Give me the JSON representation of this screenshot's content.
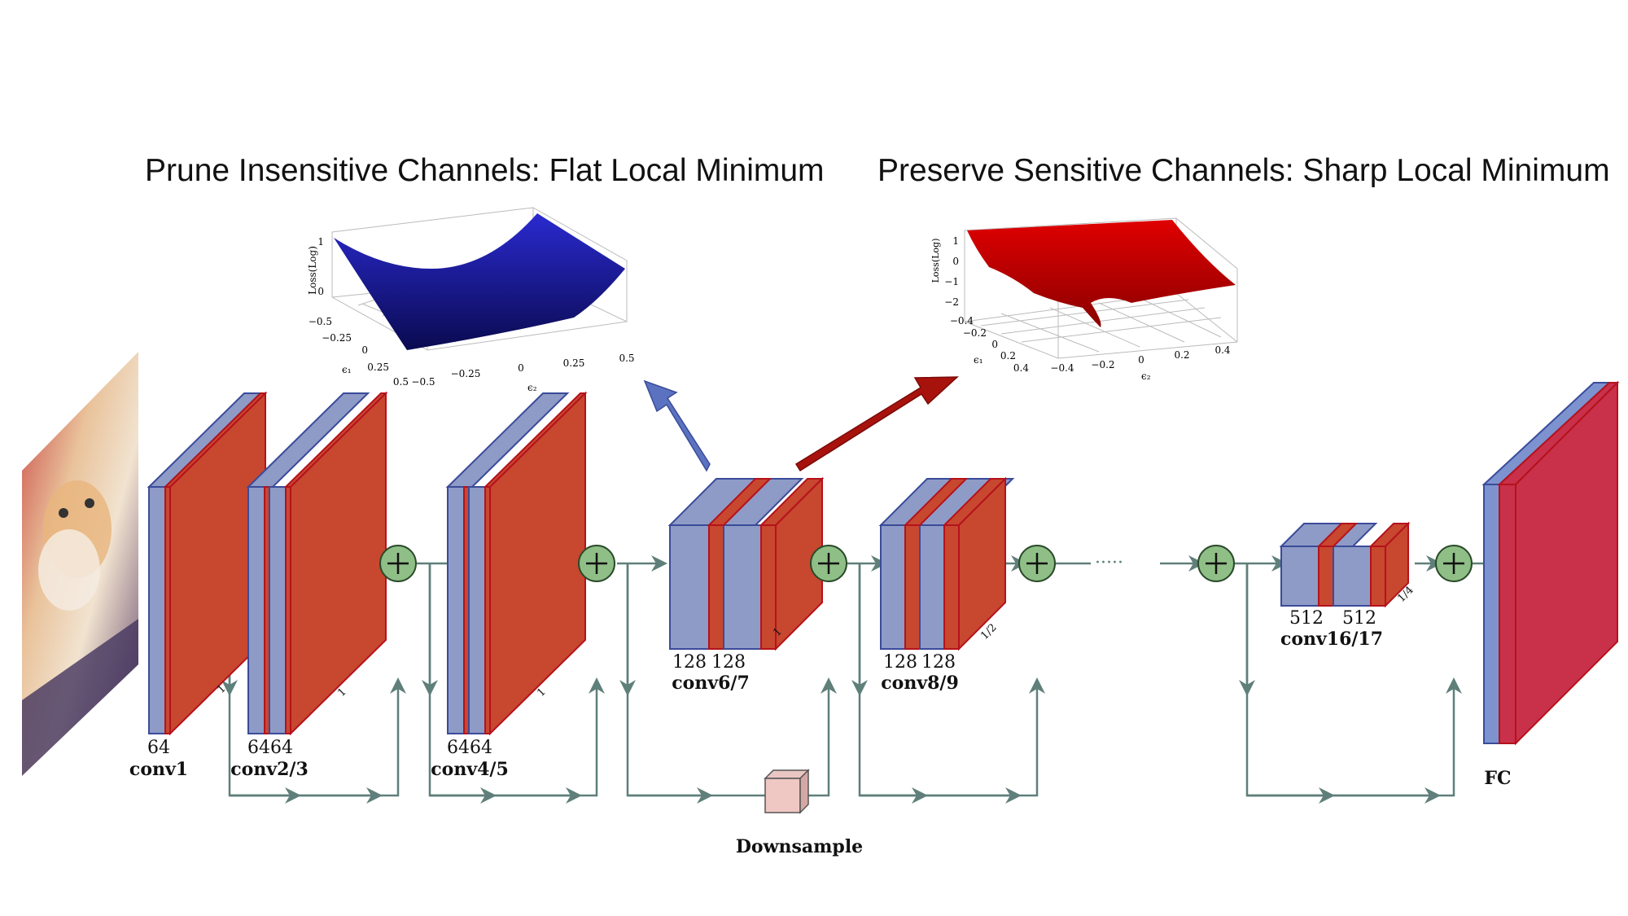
{
  "titles": {
    "left": "Prune Insensitive Channels: Flat Local Minimum",
    "right": "Preserve Sensitive Channels: Sharp Local Minimum"
  },
  "flat_plot": {
    "zlabel": "Loss(Log)",
    "z_ticks": [
      "1",
      "0"
    ],
    "e1_label": "ϵ₁",
    "e1_ticks": [
      "−0.5",
      "−0.25",
      "0",
      "0.25",
      "0.5"
    ],
    "e2_label": "ϵ₂",
    "e2_ticks": [
      "−0.5",
      "−0.25",
      "0",
      "0.25",
      "0.5"
    ],
    "surface_color": "#1a1a8c"
  },
  "sharp_plot": {
    "zlabel": "Loss(Log)",
    "z_ticks": [
      "1",
      "0",
      "−1",
      "−2"
    ],
    "e1_label": "ϵ₁",
    "e1_ticks": [
      "−0.4",
      "−0.2",
      "0",
      "0.2",
      "0.4"
    ],
    "e2_label": "ϵ₂",
    "e2_ticks": [
      "−0.4",
      "−0.2",
      "0",
      "0.2",
      "0.4"
    ],
    "surface_color": "#cc0000"
  },
  "layers": {
    "conv1": {
      "channels": [
        "64"
      ],
      "name": "conv1",
      "scale": "1"
    },
    "conv2_3": {
      "channels": [
        "64",
        "64"
      ],
      "name": "conv2/3",
      "scale": "1"
    },
    "conv4_5": {
      "channels": [
        "64",
        "64"
      ],
      "name": "conv4/5",
      "scale": "1"
    },
    "conv6_7": {
      "channels": [
        "128",
        "128"
      ],
      "name": "conv6/7",
      "scale": "1"
    },
    "conv8_9": {
      "channels": [
        "128",
        "128"
      ],
      "name": "conv8/9",
      "scale": "1/2"
    },
    "conv16_17": {
      "channels": [
        "512",
        "512"
      ],
      "name": "conv16/17",
      "scale": "1/4"
    },
    "fc": {
      "name": "FC"
    }
  },
  "downsample_label": "Downsample",
  "ellipsis": "·····",
  "colors": {
    "blue_face": "#8e9bc6",
    "blue_edge": "#3b4b9a",
    "red_face": "#c8472f",
    "red_edge": "#b5121b",
    "fc_red": "#c9304a",
    "plus_fill": "#8fbf86",
    "line": "#5f7f7a",
    "arrow_blue": "#5a72c0",
    "arrow_red": "#a8120d"
  }
}
